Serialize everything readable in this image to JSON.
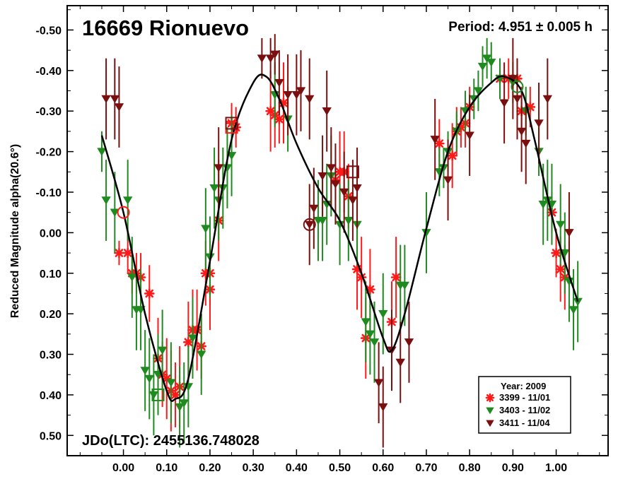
{
  "chart_data": {
    "type": "scatter",
    "title": "16669 Rionuevo",
    "period_label": "Period: 4.951 ± 0.005 h",
    "jd_label": "JDo(LTC): 2455136.748028",
    "ylabel": "Reduced Magnitude alpha(20.6°)",
    "xlabel": "",
    "xlim": [
      -0.13,
      1.12
    ],
    "ylim": [
      -0.56,
      0.55
    ],
    "y_inverted": true,
    "grid": false,
    "legend_placement": "bottom-right",
    "legend_title": "Year: 2009",
    "x_ticks": [
      {
        "value": 0.0,
        "label": "0.00"
      },
      {
        "value": 0.1,
        "label": "0.10"
      },
      {
        "value": 0.2,
        "label": "0.20"
      },
      {
        "value": 0.3,
        "label": "0.30"
      },
      {
        "value": 0.4,
        "label": "0.40"
      },
      {
        "value": 0.5,
        "label": "0.50"
      },
      {
        "value": 0.6,
        "label": "0.60"
      },
      {
        "value": 0.7,
        "label": "0.70"
      },
      {
        "value": 0.8,
        "label": "0.80"
      },
      {
        "value": 0.9,
        "label": "0.90"
      },
      {
        "value": 1.0,
        "label": "1.00"
      }
    ],
    "y_ticks": [
      {
        "value": -0.5,
        "label": "-0.50"
      },
      {
        "value": -0.4,
        "label": "-0.40"
      },
      {
        "value": -0.3,
        "label": "-0.30"
      },
      {
        "value": -0.2,
        "label": "-0.20"
      },
      {
        "value": -0.1,
        "label": "-0.10"
      },
      {
        "value": 0.0,
        "label": "0.00"
      },
      {
        "value": 0.1,
        "label": "0.10"
      },
      {
        "value": 0.2,
        "label": "0.20"
      },
      {
        "value": 0.3,
        "label": "0.30"
      },
      {
        "value": 0.4,
        "label": "0.40"
      },
      {
        "value": 0.5,
        "label": "0.50"
      }
    ],
    "fit_curve": [
      [
        -0.05,
        -0.24
      ],
      [
        0.0,
        -0.05
      ],
      [
        0.05,
        0.2
      ],
      [
        0.1,
        0.39
      ],
      [
        0.12,
        0.41
      ],
      [
        0.15,
        0.36
      ],
      [
        0.2,
        0.07
      ],
      [
        0.25,
        -0.23
      ],
      [
        0.3,
        -0.37
      ],
      [
        0.33,
        -0.385
      ],
      [
        0.36,
        -0.33
      ],
      [
        0.4,
        -0.22
      ],
      [
        0.45,
        -0.11
      ],
      [
        0.5,
        -0.03
      ],
      [
        0.55,
        0.1
      ],
      [
        0.6,
        0.26
      ],
      [
        0.62,
        0.29
      ],
      [
        0.65,
        0.2
      ],
      [
        0.7,
        -0.01
      ],
      [
        0.75,
        -0.2
      ],
      [
        0.8,
        -0.31
      ],
      [
        0.85,
        -0.37
      ],
      [
        0.88,
        -0.385
      ],
      [
        0.92,
        -0.35
      ],
      [
        0.95,
        -0.23
      ],
      [
        1.0,
        0.0
      ],
      [
        1.05,
        0.17
      ]
    ],
    "series": [
      {
        "name": "3399 - 11/01",
        "color": "#ff1a1a",
        "marker": "star",
        "points": [
          [
            -0.01,
            0.05,
            0.03
          ],
          [
            0.01,
            0.05,
            0.05
          ],
          [
            0.02,
            0.1,
            0.05
          ],
          [
            0.03,
            0.1,
            0.05
          ],
          [
            0.04,
            0.11,
            0.06
          ],
          [
            0.06,
            0.15,
            0.07
          ],
          [
            0.08,
            0.31,
            0.1
          ],
          [
            0.09,
            0.35,
            0.08
          ],
          [
            0.1,
            0.36,
            0.1
          ],
          [
            0.11,
            0.39,
            0.1
          ],
          [
            0.12,
            0.4,
            0.08
          ],
          [
            0.13,
            0.38,
            0.1
          ],
          [
            0.15,
            0.27,
            0.1
          ],
          [
            0.16,
            0.24,
            0.1
          ],
          [
            0.17,
            0.24,
            0.1
          ],
          [
            0.18,
            0.28,
            0.08
          ],
          [
            0.19,
            0.1,
            0.08
          ],
          [
            0.2,
            0.14,
            0.1
          ],
          [
            0.2,
            0.1,
            0.08
          ],
          [
            0.22,
            -0.03,
            0.1
          ],
          [
            0.25,
            -0.27,
            0.05
          ],
          [
            0.26,
            -0.26,
            0.05
          ],
          [
            0.34,
            -0.3,
            0.1
          ],
          [
            0.35,
            -0.29,
            0.08
          ],
          [
            0.36,
            -0.28,
            0.06
          ],
          [
            0.37,
            -0.32,
            0.1
          ],
          [
            0.49,
            -0.13,
            0.05
          ],
          [
            0.5,
            -0.15,
            0.1
          ],
          [
            0.51,
            -0.15,
            0.1
          ],
          [
            0.52,
            -0.09,
            0.08
          ],
          [
            0.54,
            0.09,
            0.1
          ],
          [
            0.55,
            0.11,
            0.1
          ],
          [
            0.56,
            0.26,
            0.1
          ],
          [
            0.57,
            0.14,
            0.1
          ],
          [
            0.62,
            0.22,
            0.1
          ],
          [
            0.63,
            0.11,
            0.1
          ],
          [
            0.73,
            -0.22,
            0.06
          ],
          [
            0.76,
            -0.19,
            0.08
          ],
          [
            0.77,
            -0.25,
            0.06
          ],
          [
            0.78,
            -0.26,
            0.05
          ],
          [
            0.79,
            -0.27,
            0.06
          ],
          [
            0.8,
            -0.31,
            0.05
          ],
          [
            0.87,
            -0.38,
            0.05
          ],
          [
            0.89,
            -0.38,
            0.05
          ],
          [
            0.91,
            -0.38,
            0.05
          ],
          [
            0.92,
            -0.3,
            0.06
          ],
          [
            0.94,
            -0.31,
            0.05
          ],
          [
            0.99,
            -0.05,
            0.05
          ],
          [
            1.0,
            0.05,
            0.06
          ],
          [
            1.01,
            0.09,
            0.08
          ],
          [
            1.02,
            0.11,
            0.08
          ]
        ]
      },
      {
        "name": "3403 - 11/02",
        "color": "#1f8a1f",
        "marker": "triangle-down",
        "points": [
          [
            -0.05,
            -0.2,
            0.05
          ],
          [
            -0.04,
            -0.08,
            0.1
          ],
          [
            -0.02,
            -0.05,
            0.1
          ],
          [
            0.01,
            -0.08,
            0.1
          ],
          [
            0.02,
            0.11,
            0.1
          ],
          [
            0.03,
            0.19,
            0.1
          ],
          [
            0.04,
            0.19,
            0.1
          ],
          [
            0.05,
            0.34,
            0.1
          ],
          [
            0.06,
            0.36,
            0.1
          ],
          [
            0.07,
            0.4,
            0.1
          ],
          [
            0.08,
            0.35,
            0.1
          ],
          [
            0.09,
            0.29,
            0.1
          ],
          [
            0.11,
            0.37,
            0.1
          ],
          [
            0.13,
            0.43,
            0.1
          ],
          [
            0.14,
            0.42,
            0.1
          ],
          [
            0.15,
            0.38,
            0.1
          ],
          [
            0.16,
            0.26,
            0.1
          ],
          [
            0.18,
            0.3,
            0.1
          ],
          [
            0.19,
            -0.01,
            0.1
          ],
          [
            0.2,
            0.06,
            0.1
          ],
          [
            0.21,
            -0.11,
            0.1
          ],
          [
            0.22,
            -0.08,
            0.1
          ],
          [
            0.23,
            -0.11,
            0.1
          ],
          [
            0.24,
            -0.16,
            0.1
          ],
          [
            0.25,
            -0.19,
            0.1
          ],
          [
            0.35,
            -0.34,
            0.08
          ],
          [
            0.38,
            -0.28,
            0.08
          ],
          [
            0.45,
            -0.03,
            0.1
          ],
          [
            0.46,
            -0.03,
            0.1
          ],
          [
            0.47,
            -0.07,
            0.1
          ],
          [
            0.48,
            -0.14,
            0.1
          ],
          [
            0.5,
            -0.02,
            0.1
          ],
          [
            0.52,
            -0.03,
            0.1
          ],
          [
            0.54,
            -0.02,
            0.1
          ],
          [
            0.56,
            0.22,
            0.1
          ],
          [
            0.57,
            0.25,
            0.1
          ],
          [
            0.58,
            0.27,
            0.1
          ],
          [
            0.6,
            0.2,
            0.1
          ],
          [
            0.64,
            0.13,
            0.1
          ],
          [
            0.65,
            0.13,
            0.1
          ],
          [
            0.7,
            0.0,
            0.1
          ],
          [
            0.73,
            -0.15,
            0.06
          ],
          [
            0.74,
            -0.16,
            0.05
          ],
          [
            0.75,
            -0.2,
            0.05
          ],
          [
            0.77,
            -0.25,
            0.05
          ],
          [
            0.79,
            -0.3,
            0.05
          ],
          [
            0.81,
            -0.33,
            0.05
          ],
          [
            0.82,
            -0.35,
            0.05
          ],
          [
            0.83,
            -0.41,
            0.05
          ],
          [
            0.84,
            -0.43,
            0.05
          ],
          [
            0.85,
            -0.42,
            0.05
          ],
          [
            0.87,
            -0.38,
            0.05
          ],
          [
            0.9,
            -0.37,
            0.05
          ],
          [
            0.93,
            -0.3,
            0.06
          ],
          [
            0.96,
            -0.2,
            0.06
          ],
          [
            0.97,
            -0.07,
            0.1
          ],
          [
            0.98,
            -0.08,
            0.1
          ],
          [
            0.99,
            -0.07,
            0.1
          ],
          [
            1.01,
            -0.02,
            0.1
          ],
          [
            1.02,
            0.05,
            0.1
          ],
          [
            1.03,
            0.12,
            0.1
          ],
          [
            1.04,
            0.19,
            0.1
          ],
          [
            1.05,
            0.17,
            0.1
          ]
        ]
      },
      {
        "name": "3411 - 11/04",
        "color": "#7a0f0f",
        "marker": "triangle-down",
        "points": [
          [
            -0.04,
            -0.33,
            0.1
          ],
          [
            -0.02,
            -0.33,
            0.1
          ],
          [
            -0.01,
            -0.31,
            0.1
          ],
          [
            0.22,
            -0.16,
            0.1
          ],
          [
            0.32,
            -0.43,
            0.05
          ],
          [
            0.34,
            -0.43,
            0.05
          ],
          [
            0.35,
            -0.44,
            0.05
          ],
          [
            0.36,
            -0.37,
            0.08
          ],
          [
            0.38,
            -0.34,
            0.1
          ],
          [
            0.4,
            -0.34,
            0.1
          ],
          [
            0.41,
            -0.35,
            0.1
          ],
          [
            0.43,
            -0.33,
            0.1
          ],
          [
            0.43,
            -0.02,
            0.1
          ],
          [
            0.44,
            -0.06,
            0.1
          ],
          [
            0.46,
            -0.14,
            0.1
          ],
          [
            0.47,
            -0.3,
            0.1
          ],
          [
            0.48,
            -0.16,
            0.1
          ],
          [
            0.49,
            -0.12,
            0.1
          ],
          [
            0.51,
            -0.1,
            0.1
          ],
          [
            0.53,
            -0.08,
            0.1
          ],
          [
            0.54,
            -0.11,
            0.1
          ],
          [
            0.59,
            0.37,
            0.1
          ],
          [
            0.6,
            0.43,
            0.1
          ],
          [
            0.62,
            0.29,
            0.1
          ],
          [
            0.64,
            0.32,
            0.1
          ],
          [
            0.66,
            0.27,
            0.1
          ],
          [
            0.72,
            -0.23,
            0.1
          ],
          [
            0.75,
            -0.13,
            0.1
          ],
          [
            0.8,
            -0.24,
            0.1
          ],
          [
            0.88,
            -0.32,
            0.1
          ],
          [
            0.9,
            -0.38,
            0.1
          ],
          [
            0.91,
            -0.33,
            0.1
          ],
          [
            0.92,
            -0.25,
            0.1
          ],
          [
            0.93,
            -0.22,
            0.1
          ],
          [
            0.96,
            -0.27,
            0.1
          ],
          [
            0.98,
            -0.33,
            0.1
          ],
          [
            1.03,
            0.0,
            0.1
          ]
        ]
      }
    ],
    "highlights": [
      {
        "x": 0.0,
        "y": -0.05,
        "shape": "circle",
        "color": "#ff1a1a"
      },
      {
        "x": 0.91,
        "y": -0.36,
        "shape": "circle",
        "color": "#1f8a1f"
      },
      {
        "x": 0.43,
        "y": -0.02,
        "shape": "circle",
        "color": "#7a0f0f"
      },
      {
        "x": 0.25,
        "y": -0.26,
        "shape": "square",
        "color": "#ff1a1a"
      },
      {
        "x": 0.25,
        "y": -0.27,
        "shape": "square",
        "color": "#7a0f0f"
      },
      {
        "x": 0.53,
        "y": -0.15,
        "shape": "square",
        "color": "#7a0f0f"
      },
      {
        "x": 0.08,
        "y": 0.4,
        "shape": "square",
        "color": "#1f8a1f"
      }
    ]
  }
}
